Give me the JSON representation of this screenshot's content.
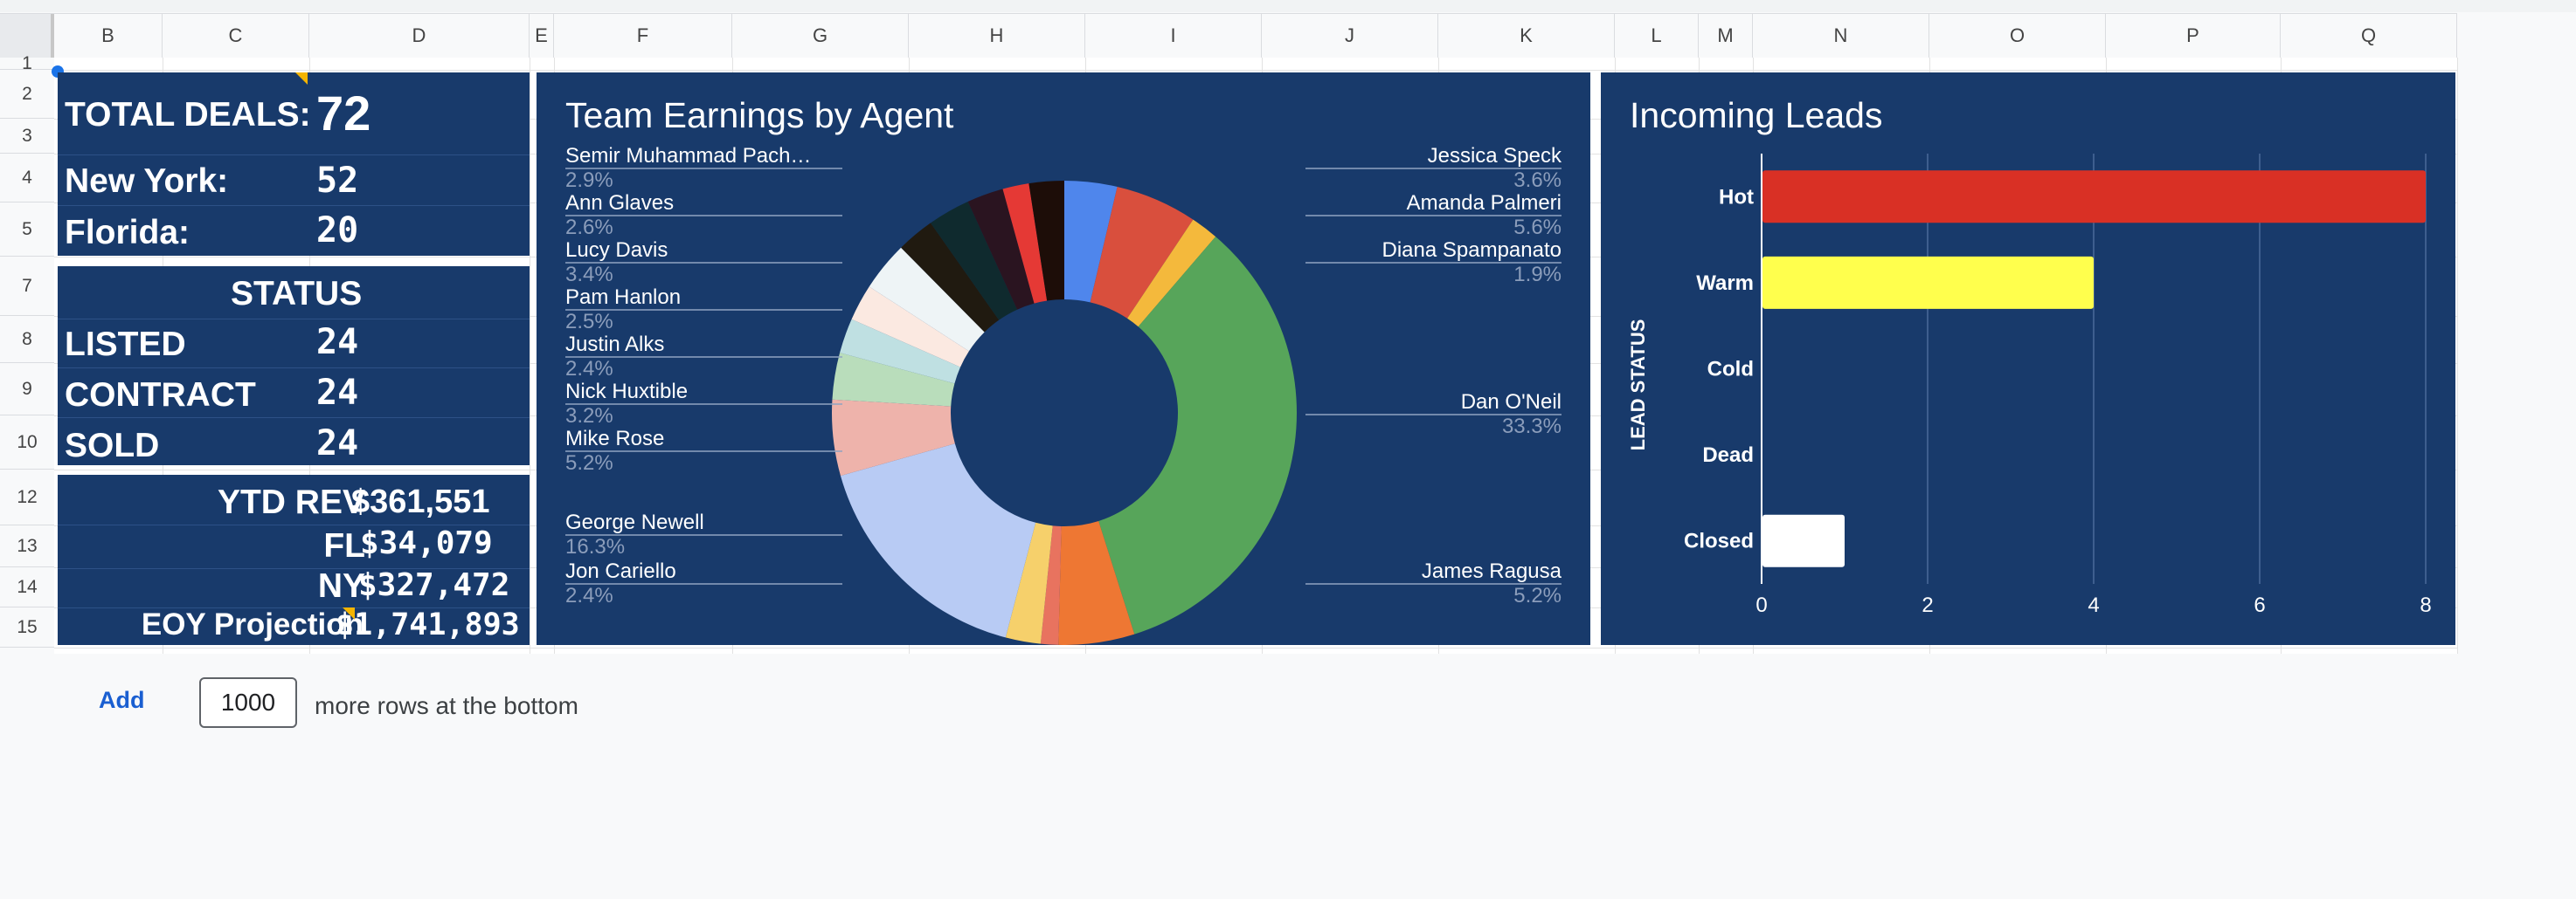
{
  "columns": [
    "B",
    "C",
    "D",
    "E",
    "F",
    "G",
    "H",
    "I",
    "J",
    "K",
    "L",
    "M",
    "N",
    "O",
    "P",
    "Q"
  ],
  "rows": [
    "1",
    "2",
    "3",
    "4",
    "5",
    "7",
    "8",
    "9",
    "10",
    "12",
    "13",
    "14",
    "15"
  ],
  "kpi": {
    "total_deals_label": "TOTAL DEALS:",
    "total_deals_value": "72",
    "new_york_label": "New York:",
    "new_york_value": "52",
    "florida_label": "Florida:",
    "florida_value": "20",
    "status_title": "STATUS",
    "listed_label": "LISTED",
    "listed_value": "24",
    "contract_label": "CONTRACT",
    "contract_value": "24",
    "sold_label": "SOLD",
    "sold_value": "24",
    "ytd_rev_label": "YTD REV",
    "ytd_rev_value": "$361,551",
    "fl_label": "FL",
    "fl_value": "$34,079",
    "ny_label": "NY",
    "ny_value": "$327,472",
    "eoy_label": "EOY Projection",
    "eoy_value": "$1,741,893"
  },
  "colors": {
    "panel": "#183a6b",
    "grid_line": "#e2e2e2",
    "link": "#1a5fd1",
    "note_marker": "#f4b400"
  },
  "chart_data": [
    {
      "type": "pie",
      "title": "Team Earnings by Agent",
      "donut": true,
      "slices": [
        {
          "name": "Jessica Speck",
          "percent": 3.6,
          "color": "#4f86ec"
        },
        {
          "name": "Amanda Palmeri",
          "percent": 5.6,
          "color": "#d94f3d"
        },
        {
          "name": "Diana Spampanato",
          "percent": 1.9,
          "color": "#f4b93c"
        },
        {
          "name": "Dan O'Neil",
          "percent": 33.3,
          "color": "#57a55a"
        },
        {
          "name": "James Ragusa",
          "percent": 5.2,
          "color": "#ee7733"
        },
        {
          "name": "",
          "percent": 1.2,
          "color": "#e8735f"
        },
        {
          "name": "Jon Cariello",
          "percent": 2.4,
          "color": "#f6d06b"
        },
        {
          "name": "George Newell",
          "percent": 16.3,
          "color": "#b8cbf4"
        },
        {
          "name": "Mike Rose",
          "percent": 5.2,
          "color": "#eeb3ab"
        },
        {
          "name": "Nick Huxtible",
          "percent": 3.2,
          "color": "#b9ddbb"
        },
        {
          "name": "Justin Alks",
          "percent": 2.4,
          "color": "#bfe0e2"
        },
        {
          "name": "Pam Hanlon",
          "percent": 2.5,
          "color": "#fbe9e1"
        },
        {
          "name": "Lucy Davis",
          "percent": 3.4,
          "color": "#eef4f6"
        },
        {
          "name": "Ann Glaves",
          "percent": 2.6,
          "color": "#201a10"
        },
        {
          "name": "Semir Muhammad Pach…",
          "percent": 2.9,
          "color": "#0f2a2e"
        },
        {
          "name": "",
          "percent": 2.5,
          "color": "#2a1420"
        },
        {
          "name": "",
          "percent": 1.8,
          "color": "#e53935"
        },
        {
          "name": "",
          "percent": 2.4,
          "color": "#1d0d08"
        }
      ],
      "labels": {
        "left": [
          {
            "name": "Semir Muhammad Pach…",
            "pct": "2.9%"
          },
          {
            "name": "Ann Glaves",
            "pct": "2.6%"
          },
          {
            "name": "Lucy Davis",
            "pct": "3.4%"
          },
          {
            "name": "Pam Hanlon",
            "pct": "2.5%"
          },
          {
            "name": "Justin Alks",
            "pct": "2.4%"
          },
          {
            "name": "Nick Huxtible",
            "pct": "3.2%"
          },
          {
            "name": "Mike Rose",
            "pct": "5.2%"
          },
          {
            "name": "George Newell",
            "pct": "16.3%"
          },
          {
            "name": "Jon Cariello",
            "pct": "2.4%"
          }
        ],
        "right": [
          {
            "name": "Jessica Speck",
            "pct": "3.6%"
          },
          {
            "name": "Amanda Palmeri",
            "pct": "5.6%"
          },
          {
            "name": "Diana Spampanato",
            "pct": "1.9%"
          },
          {
            "name": "Dan O'Neil",
            "pct": "33.3%"
          },
          {
            "name": "James Ragusa",
            "pct": "5.2%"
          }
        ]
      }
    },
    {
      "type": "bar",
      "orientation": "horizontal",
      "title": "Incoming Leads",
      "ylabel": "LEAD STATUS",
      "categories": [
        "Hot",
        "Warm",
        "Cold",
        "Dead",
        "Closed"
      ],
      "values": [
        8,
        4,
        0,
        0,
        1
      ],
      "colors": [
        "#d93025",
        "#ffff4d",
        "#ffffff",
        "#ffffff",
        "#ffffff"
      ],
      "xlim": [
        0,
        8
      ],
      "xticks": [
        "0",
        "2",
        "4",
        "6",
        "8"
      ],
      "grid": true
    }
  ],
  "footer": {
    "add_label": "Add",
    "rows_value": "1000",
    "tail_text": "more rows at the bottom"
  }
}
